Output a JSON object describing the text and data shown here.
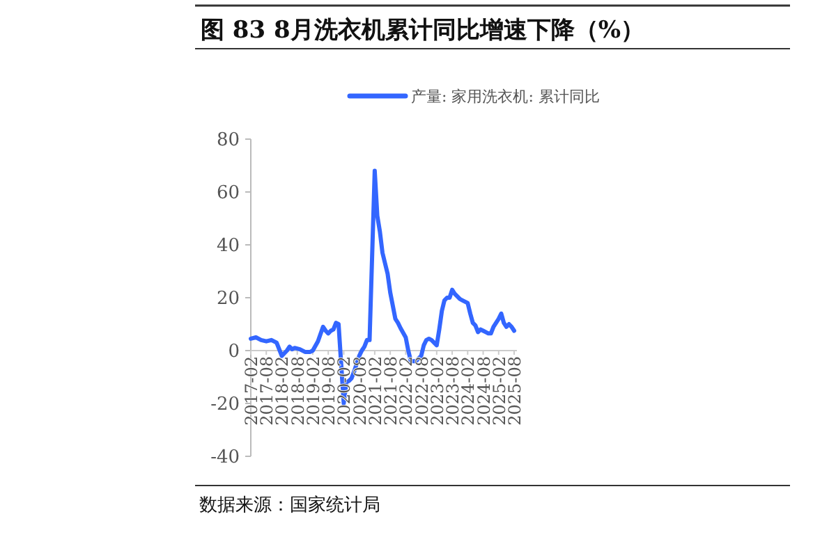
{
  "chart_data": {
    "type": "line",
    "title": "图 83 8月洗衣机累计同比增速下降（%）",
    "annotations": [
      "数据来源：国家统计局"
    ],
    "x": [
      "2017-02",
      "2017-04",
      "2017-06",
      "2017-08",
      "2017-10",
      "2017-12",
      "2018-02",
      "2018-04",
      "2018-05",
      "2018-06",
      "2018-07",
      "2018-09",
      "2018-11",
      "2019-01",
      "2019-02",
      "2019-04",
      "2019-06",
      "2019-07",
      "2019-08",
      "2019-09",
      "2019-10",
      "2019-11",
      "2019-12",
      "2020-02",
      "2020-03",
      "2020-04",
      "2020-05",
      "2020-06",
      "2020-07",
      "2020-08",
      "2020-09",
      "2020-10",
      "2020-11",
      "2020-12",
      "2021-02",
      "2021-03",
      "2021-04",
      "2021-05",
      "2021-06",
      "2021-07",
      "2021-08",
      "2021-09",
      "2021-10",
      "2021-11",
      "2021-12",
      "2022-02",
      "2022-03",
      "2022-04",
      "2022-05",
      "2022-06",
      "2022-07",
      "2022-08",
      "2022-09",
      "2022-10",
      "2022-11",
      "2022-12",
      "2023-02",
      "2023-03",
      "2023-04",
      "2023-05",
      "2023-06",
      "2023-07",
      "2023-08",
      "2023-09",
      "2023-10",
      "2023-11",
      "2023-12",
      "2024-02",
      "2024-03",
      "2024-04",
      "2024-05",
      "2024-06",
      "2024-07",
      "2024-08",
      "2024-09",
      "2024-10",
      "2024-11",
      "2024-12",
      "2025-02",
      "2025-03",
      "2025-04",
      "2025-05",
      "2025-06",
      "2025-07",
      "2025-08"
    ],
    "series": [
      {
        "name": "产量: 家用洗衣机: 累计同比",
        "color": "#3366ff",
        "values": [
          4.5,
          5,
          4,
          3.5,
          4,
          3,
          -2,
          0,
          1.5,
          0.5,
          1,
          0.5,
          -0.5,
          -0.5,
          0,
          3.5,
          9,
          7.5,
          6.5,
          7.5,
          8,
          10.5,
          10,
          -20,
          -12,
          -11.5,
          -10.5,
          -8,
          -5,
          -2,
          0,
          1.5,
          4,
          4,
          68,
          51,
          45,
          37,
          33,
          29,
          22,
          17,
          12,
          10.5,
          8.5,
          5,
          0,
          -4,
          -4,
          -4,
          -3,
          -2,
          2,
          4,
          4.5,
          4,
          2,
          8,
          15,
          19,
          20,
          20,
          23,
          21.5,
          20.5,
          19.5,
          19,
          18,
          14,
          10.5,
          9.5,
          7,
          8,
          7.5,
          7,
          6.5,
          6.5,
          9,
          12,
          14,
          10.5,
          9,
          10,
          9,
          7.5
        ]
      }
    ],
    "xlim": [
      "2017-02",
      "2025-08"
    ],
    "xticks": [
      "2017-02",
      "2017-08",
      "2018-02",
      "2018-08",
      "2019-02",
      "2019-08",
      "2020-02",
      "2020-08",
      "2021-02",
      "2021-08",
      "2022-02",
      "2022-08",
      "2023-02",
      "2023-08",
      "2024-02",
      "2024-08",
      "2025-02",
      "2025-08"
    ],
    "ylim": [
      -40,
      80
    ],
    "yticks": [
      -40,
      -20,
      0,
      20,
      40,
      60,
      80
    ],
    "legend": "top",
    "marker": "none",
    "line_style": "solid",
    "grid": false
  }
}
